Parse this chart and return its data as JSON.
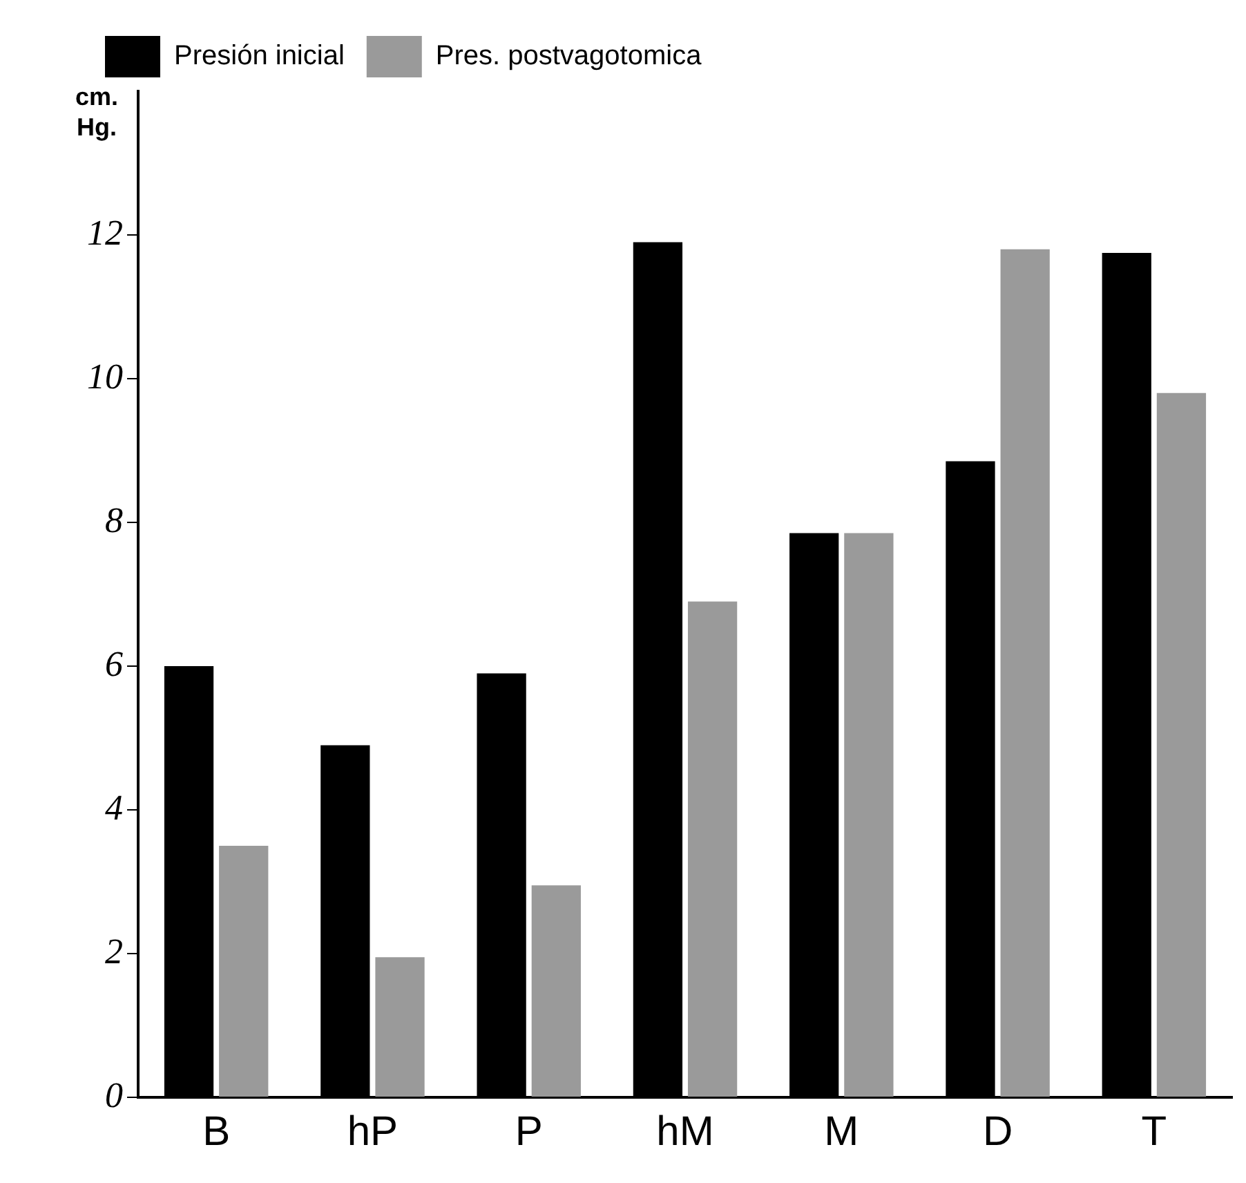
{
  "chart_data": {
    "type": "bar",
    "ylabel": "cm. Hg.",
    "categories": [
      "B",
      "hP",
      "P",
      "hM",
      "M",
      "D",
      "T"
    ],
    "series": [
      {
        "name": "Presión inicial",
        "color": "#000000",
        "values": [
          6,
          4.9,
          5.9,
          11.9,
          7.85,
          8.85,
          11.75
        ]
      },
      {
        "name": "Pres. postvagotomica",
        "color": "#9a9a9a",
        "values": [
          3.5,
          1.95,
          2.95,
          6.9,
          7.85,
          11.8,
          9.8
        ]
      }
    ],
    "ylim": [
      0,
      14
    ],
    "yticks": [
      0,
      2,
      4,
      6,
      8,
      10,
      12
    ],
    "grid": false,
    "legend": "top left"
  }
}
